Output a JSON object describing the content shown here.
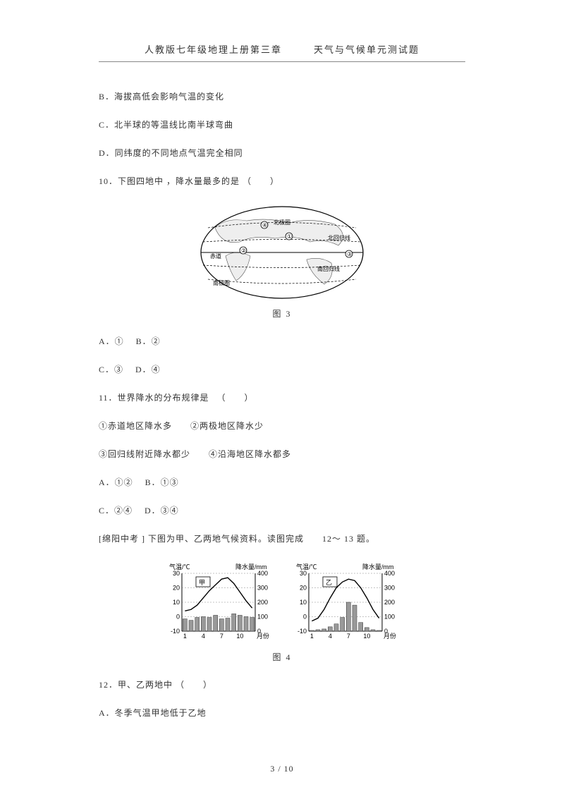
{
  "header": "人教版七年级地理上册第三章　　　天气与气候单元测试题",
  "lines": {
    "b": "B．海拔高低会影响气温的变化",
    "c": "C．北半球的等温线比南半球弯曲",
    "d": "D．同纬度的不同地点气温完全相同",
    "q10": "10．下图四地中 ，降水量最多的是  （　　）",
    "fig3": "图 3",
    "q10ab": "A．①　 B．②",
    "q10cd": "C．③　 D．④",
    "q11": "11．世界降水的分布规律是 　（　　）",
    "q11a": "①赤道地区降水多　　②两极地区降水少",
    "q11b": "③回归线附近降水都少　　④沿海地区降水都多",
    "q11ab": "A．①②　 B．①③",
    "q11cd": "C．②④　 D．③④",
    "intro12": "[绵阳中考  ] 下图为甲、乙两地气候资料。读图完成　　12～ 13 题。",
    "fig4": "图 4",
    "q12": "12．甲、乙两地中  （　　）",
    "q12a": "A．冬季气温甲地低于乙地"
  },
  "footer": "3 / 10",
  "map": {
    "labels": {
      "npole": "北极圈",
      "tropicN": "北回归线",
      "equator": "赤道",
      "tropicS": "南回归线",
      "spole": "南极圈"
    },
    "points": [
      "①",
      "②",
      "③",
      "④"
    ]
  },
  "charts": {
    "temp_axis": {
      "label": "气温/℃",
      "ticks": [
        -10,
        0,
        10,
        20,
        30
      ],
      "min": -10,
      "max": 30
    },
    "precip_axis": {
      "label": "降水量/mm",
      "ticks": [
        0,
        100,
        200,
        300,
        400
      ],
      "min": 0,
      "max": 400
    },
    "x_ticks": [
      "1",
      "4",
      "7",
      "10",
      "月份"
    ],
    "jia": {
      "name": "甲",
      "temp": [
        4,
        5,
        8,
        13,
        18,
        22,
        26,
        27,
        23,
        17,
        11,
        6
      ],
      "precip": [
        85,
        75,
        95,
        100,
        95,
        110,
        85,
        90,
        120,
        110,
        100,
        95
      ]
    },
    "yi": {
      "name": "乙",
      "temp": [
        -3,
        -1,
        5,
        13,
        20,
        24,
        26,
        25,
        20,
        13,
        5,
        -1
      ],
      "precip": [
        5,
        10,
        15,
        30,
        50,
        95,
        200,
        180,
        60,
        25,
        10,
        5
      ]
    }
  },
  "style": {
    "color_bg": "#ffffff",
    "color_text": "#333333",
    "color_line": "#000000",
    "color_grid": "#888888",
    "color_bar": "#888888",
    "color_map_land": "#f5f5f5"
  }
}
